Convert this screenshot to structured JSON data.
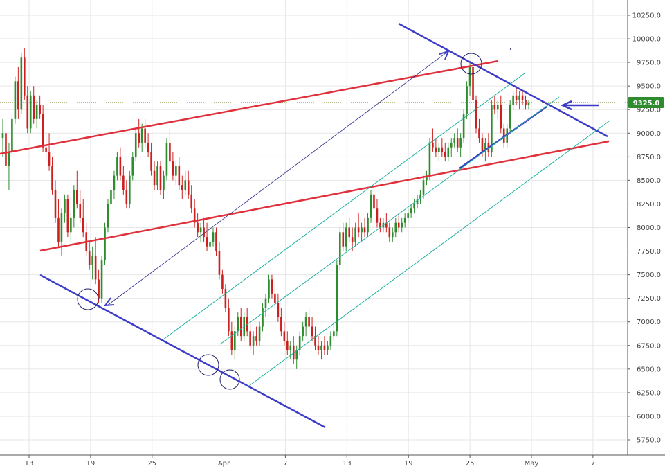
{
  "chart_data": {
    "type": "candlestick",
    "title": "",
    "xlabel": "",
    "ylabel": "",
    "ylim": [
      5600,
      10370
    ],
    "x_ticks": [
      "13",
      "19",
      "25",
      "Apr",
      "7",
      "13",
      "19",
      "25",
      "May",
      "7"
    ],
    "x_tick_dates": [
      "Mar 13",
      "Mar 19",
      "Mar 25",
      "Apr 1",
      "Apr 7",
      "Apr 13",
      "Apr 19",
      "Apr 25",
      "May 1",
      "May 7"
    ],
    "y_ticks": [
      5750,
      6000,
      6250,
      6500,
      6750,
      7000,
      7250,
      7500,
      7750,
      8000,
      8250,
      8500,
      8750,
      9000,
      9250,
      9500,
      9750,
      10000,
      10250
    ],
    "y_tick_labels": [
      "5750.0",
      "6000.0",
      "6250.0",
      "6500.0",
      "6750.0",
      "7000.0",
      "7250.0",
      "7500.0",
      "7750.0",
      "8000.0",
      "8250.0",
      "8500.0",
      "8750.0",
      "9000.0",
      "9250.0",
      "9500.0",
      "9750.0",
      "10000.0",
      "10250.0"
    ],
    "current_price": 9325,
    "current_price_label": "9325.0",
    "grid": true,
    "colors": {
      "up": "#2e8b2e",
      "down": "#cc2020",
      "trendline_red": "#e0303c",
      "trendline_blue": "#3c3cc8",
      "channel_teal": "#20b2a0",
      "price_tag": "#2e8b2e",
      "grid": "#e6e6e6"
    },
    "candles_4h": [
      [
        "Mar 11 00:00",
        8950,
        9150,
        8750,
        9000
      ],
      [
        "Mar 11 04:00",
        9000,
        9100,
        8600,
        8650
      ],
      [
        "Mar 11 08:00",
        8650,
        8900,
        8400,
        8800
      ],
      [
        "Mar 11 12:00",
        8800,
        9200,
        8750,
        9150
      ],
      [
        "Mar 11 16:00",
        9150,
        9600,
        9100,
        9550
      ],
      [
        "Mar 11 20:00",
        9550,
        9700,
        9150,
        9250
      ],
      [
        "Mar 12 00:00",
        9250,
        9850,
        9200,
        9800
      ],
      [
        "Mar 12 04:00",
        9800,
        9900,
        9350,
        9400
      ],
      [
        "Mar 12 08:00",
        9400,
        9500,
        9000,
        9050
      ],
      [
        "Mar 12 12:00",
        9050,
        9450,
        9000,
        9400
      ],
      [
        "Mar 12 16:00",
        9400,
        9500,
        9100,
        9150
      ],
      [
        "Mar 12 20:00",
        9150,
        9350,
        9050,
        9300
      ],
      [
        "Mar 13 00:00",
        9300,
        9400,
        9150,
        9200
      ],
      [
        "Mar 13 04:00",
        9200,
        9300,
        8800,
        8850
      ],
      [
        "Mar 13 08:00",
        8850,
        9000,
        8700,
        8800
      ],
      [
        "Mar 13 12:00",
        8800,
        9000,
        8600,
        8650
      ],
      [
        "Mar 13 16:00",
        8650,
        8750,
        8350,
        8400
      ],
      [
        "Mar 13 20:00",
        8400,
        8500,
        8050,
        8100
      ],
      [
        "Mar 14 00:00",
        8100,
        8300,
        7800,
        7850
      ],
      [
        "Mar 14 04:00",
        7850,
        8200,
        7700,
        8150
      ],
      [
        "Mar 14 08:00",
        8150,
        8350,
        8050,
        8300
      ],
      [
        "Mar 14 12:00",
        8300,
        8350,
        7900,
        7950
      ],
      [
        "Mar 14 16:00",
        7950,
        8150,
        7850,
        8100
      ],
      [
        "Mar 14 20:00",
        8100,
        8450,
        8000,
        8400
      ],
      [
        "Mar 15 00:00",
        8400,
        8600,
        8200,
        8250
      ],
      [
        "Mar 15 04:00",
        8250,
        8400,
        8050,
        8100
      ],
      [
        "Mar 15 08:00",
        8100,
        8300,
        7900,
        7950
      ],
      [
        "Mar 15 12:00",
        7950,
        8050,
        7700,
        7750
      ],
      [
        "Mar 15 16:00",
        7750,
        7850,
        7550,
        7600
      ],
      [
        "Mar 15 20:00",
        7600,
        7800,
        7450,
        7700
      ],
      [
        "Mar 16 00:00",
        7700,
        7900,
        7400,
        7450
      ],
      [
        "Mar 16 04:00",
        7450,
        7550,
        7200,
        7250
      ],
      [
        "Mar 16 08:00",
        7250,
        7700,
        7200,
        7650
      ],
      [
        "Mar 16 12:00",
        7650,
        8050,
        7600,
        8000
      ],
      [
        "Mar 16 16:00",
        8000,
        8300,
        7950,
        8250
      ],
      [
        "Mar 16 20:00",
        8250,
        8450,
        8150,
        8400
      ],
      [
        "Mar 17 00:00",
        8400,
        8600,
        8300,
        8550
      ],
      [
        "Mar 17 04:00",
        8550,
        8800,
        8500,
        8750
      ],
      [
        "Mar 17 08:00",
        8750,
        8850,
        8500,
        8550
      ],
      [
        "Mar 17 12:00",
        8550,
        8650,
        8350,
        8400
      ],
      [
        "Mar 17 16:00",
        8400,
        8500,
        8200,
        8250
      ],
      [
        "Mar 17 20:00",
        8250,
        8600,
        8200,
        8550
      ],
      [
        "Mar 18 00:00",
        8550,
        8800,
        8500,
        8750
      ],
      [
        "Mar 18 04:00",
        8750,
        9050,
        8700,
        9000
      ],
      [
        "Mar 18 08:00",
        9000,
        9150,
        8850,
        8900
      ],
      [
        "Mar 18 12:00",
        8900,
        9100,
        8800,
        9050
      ],
      [
        "Mar 18 16:00",
        9050,
        9150,
        8850,
        8900
      ],
      [
        "Mar 18 20:00",
        8900,
        9000,
        8750,
        8800
      ],
      [
        "Mar 19 00:00",
        8800,
        8900,
        8550,
        8600
      ],
      [
        "Mar 19 04:00",
        8600,
        8700,
        8400,
        8450
      ],
      [
        "Mar 19 08:00",
        8450,
        8700,
        8400,
        8650
      ],
      [
        "Mar 19 12:00",
        8650,
        8700,
        8350,
        8400
      ],
      [
        "Mar 19 16:00",
        8400,
        8600,
        8300,
        8550
      ],
      [
        "Mar 19 20:00",
        8550,
        8950,
        8500,
        8900
      ],
      [
        "Mar 20 00:00",
        8900,
        9050,
        8650,
        8700
      ],
      [
        "Mar 20 04:00",
        8700,
        8800,
        8500,
        8550
      ],
      [
        "Mar 20 08:00",
        8550,
        8700,
        8450,
        8650
      ],
      [
        "Mar 20 12:00",
        8650,
        8750,
        8400,
        8450
      ],
      [
        "Mar 20 16:00",
        8450,
        8550,
        8300,
        8400
      ],
      [
        "Mar 20 20:00",
        8400,
        8600,
        8350,
        8500
      ],
      [
        "Mar 21 00:00",
        8500,
        8600,
        8300,
        8350
      ],
      [
        "Mar 21 04:00",
        8350,
        8450,
        8150,
        8200
      ],
      [
        "Mar 21 08:00",
        8200,
        8300,
        8000,
        8050
      ],
      [
        "Mar 21 12:00",
        8050,
        8150,
        7900,
        7950
      ],
      [
        "Mar 21 16:00",
        7950,
        8050,
        7850,
        8000
      ],
      [
        "Mar 21 20:00",
        8000,
        8100,
        7850,
        7900
      ],
      [
        "Mar 22 00:00",
        7900,
        8050,
        7750,
        7800
      ],
      [
        "Mar 22 04:00",
        7800,
        7950,
        7700,
        7850
      ],
      [
        "Mar 22 08:00",
        7850,
        8000,
        7800,
        7950
      ],
      [
        "Mar 22 12:00",
        7950,
        8000,
        7700,
        7750
      ],
      [
        "Mar 22 16:00",
        7750,
        7850,
        7450,
        7500
      ],
      [
        "Mar 22 20:00",
        7500,
        7550,
        7300,
        7350
      ],
      [
        "Mar 23 00:00",
        7350,
        7400,
        7100,
        7150
      ],
      [
        "Mar 23 04:00",
        7150,
        7250,
        6850,
        6900
      ],
      [
        "Mar 23 08:00",
        6900,
        7000,
        6650,
        6700
      ],
      [
        "Mar 23 12:00",
        6700,
        6950,
        6600,
        6900
      ],
      [
        "Mar 23 16:00",
        6900,
        7100,
        6850,
        7050
      ],
      [
        "Mar 23 20:00",
        7050,
        7150,
        6800,
        6850
      ],
      [
        "Mar 24 00:00",
        6850,
        7100,
        6800,
        7050
      ],
      [
        "Mar 24 04:00",
        7050,
        7150,
        6850,
        6900
      ],
      [
        "Mar 24 08:00",
        6900,
        7000,
        6700,
        6750
      ],
      [
        "Mar 24 12:00",
        6750,
        6900,
        6650,
        6850
      ],
      [
        "Mar 24 16:00",
        6850,
        6950,
        6750,
        6800
      ],
      [
        "Mar 24 20:00",
        6800,
        7000,
        6750,
        6950
      ],
      [
        "Mar 25 00:00",
        6950,
        7200,
        6900,
        7150
      ],
      [
        "Mar 25 04:00",
        7150,
        7300,
        7050,
        7250
      ],
      [
        "Mar 25 08:00",
        7250,
        7500,
        7200,
        7450
      ],
      [
        "Mar 25 12:00",
        7450,
        7500,
        7250,
        7300
      ],
      [
        "Mar 25 16:00",
        7300,
        7400,
        7150,
        7200
      ],
      [
        "Mar 25 20:00",
        7200,
        7300,
        7000,
        7050
      ],
      [
        "Mar 26 00:00",
        7050,
        7150,
        6850,
        6900
      ],
      [
        "Mar 26 04:00",
        6900,
        7000,
        6750,
        6800
      ],
      [
        "Mar 26 08:00",
        6800,
        6900,
        6650,
        6700
      ],
      [
        "Mar 26 12:00",
        6700,
        6800,
        6600,
        6750
      ],
      [
        "Mar 26 16:00",
        6750,
        6850,
        6550,
        6600
      ],
      [
        "Mar 26 20:00",
        6600,
        6750,
        6500,
        6700
      ],
      [
        "Mar 27 00:00",
        6700,
        6900,
        6650,
        6850
      ],
      [
        "Mar 27 04:00",
        6850,
        7000,
        6800,
        6950
      ],
      [
        "Mar 27 08:00",
        6950,
        7100,
        6850,
        7050
      ],
      [
        "Mar 27 12:00",
        7050,
        7150,
        6900,
        6950
      ],
      [
        "Mar 27 16:00",
        6950,
        7050,
        6800,
        6850
      ],
      [
        "Mar 27 20:00",
        6850,
        6950,
        6700,
        6750
      ],
      [
        "Mar 28 00:00",
        6750,
        6850,
        6650,
        6700
      ],
      [
        "Mar 28 04:00",
        6700,
        6800,
        6600,
        6750
      ],
      [
        "Mar 28 08:00",
        6750,
        6850,
        6650,
        6700
      ],
      [
        "Mar 28 12:00",
        6700,
        6800,
        6650,
        6750
      ],
      [
        "Mar 28 16:00",
        6750,
        6900,
        6700,
        6850
      ],
      [
        "Mar 28 20:00",
        6850,
        7000,
        6800,
        6900
      ],
      [
        "Mar 29 00:00",
        6900,
        7650,
        6850,
        7600
      ],
      [
        "Mar 29 04:00",
        7600,
        8000,
        7550,
        7950
      ],
      [
        "Mar 29 08:00",
        7950,
        8050,
        7750,
        7800
      ],
      [
        "Mar 29 12:00",
        7800,
        8050,
        7750,
        8000
      ],
      [
        "Mar 29 16:00",
        8000,
        8100,
        7850,
        7900
      ],
      [
        "Mar 29 20:00",
        7900,
        8000,
        7750,
        7850
      ],
      [
        "Mar 30 00:00",
        7850,
        8050,
        7800,
        8000
      ],
      [
        "Mar 30 04:00",
        8000,
        8150,
        7900,
        7950
      ],
      [
        "Mar 30 08:00",
        7950,
        8050,
        7850,
        8000
      ],
      [
        "Mar 30 12:00",
        8000,
        8100,
        7900,
        7950
      ],
      [
        "Mar 30 16:00",
        7950,
        8150,
        7900,
        8100
      ],
      [
        "Mar 30 20:00",
        8100,
        8400,
        8050,
        8350
      ],
      [
        "Mar 31 00:00",
        8350,
        8450,
        8150,
        8200
      ],
      [
        "Mar 31 04:00",
        8200,
        8300,
        8000,
        8050
      ],
      [
        "Mar 31 08:00",
        8050,
        8100,
        7950,
        8000
      ],
      [
        "Mar 31 12:00",
        8000,
        8100,
        7950,
        8050
      ],
      [
        "Mar 31 16:00",
        8050,
        8150,
        7950,
        8000
      ],
      [
        "Mar 31 20:00",
        8000,
        8050,
        7850,
        7900
      ],
      [
        "Apr 1 00:00",
        7900,
        8000,
        7850,
        7950
      ],
      [
        "Apr 1 04:00",
        7950,
        8100,
        7900,
        8050
      ],
      [
        "Apr 1 08:00",
        8050,
        8150,
        7950,
        8000
      ],
      [
        "Apr 1 12:00",
        8000,
        8100,
        7950,
        8050
      ],
      [
        "Apr 1 16:00",
        8050,
        8150,
        8000,
        8100
      ],
      [
        "Apr 1 20:00",
        8100,
        8200,
        8050,
        8150
      ],
      [
        "Apr 2 00:00",
        8150,
        8250,
        8100,
        8200
      ],
      [
        "Apr 2 04:00",
        8200,
        8300,
        8150,
        8250
      ],
      [
        "Apr 2 08:00",
        8250,
        8350,
        8200,
        8300
      ],
      [
        "Apr 2 12:00",
        8300,
        8400,
        8250,
        8350
      ],
      [
        "Apr 2 16:00",
        8350,
        8550,
        8300,
        8500
      ],
      [
        "Apr 2 20:00",
        8500,
        8600,
        8450,
        8550
      ],
      [
        "Apr 3 00:00",
        8550,
        8950,
        8500,
        8900
      ],
      [
        "Apr 3 04:00",
        8900,
        9050,
        8800,
        8850
      ],
      [
        "Apr 3 08:00",
        8850,
        8950,
        8750,
        8800
      ],
      [
        "Apr 3 12:00",
        8800,
        8900,
        8700,
        8850
      ],
      [
        "Apr 3 16:00",
        8850,
        8950,
        8750,
        8800
      ],
      [
        "Apr 3 20:00",
        8800,
        8900,
        8700,
        8750
      ],
      [
        "Apr 4 00:00",
        8750,
        8900,
        8700,
        8850
      ],
      [
        "Apr 4 04:00",
        8850,
        8950,
        8750,
        8900
      ],
      [
        "Apr 4 08:00",
        8900,
        9000,
        8850,
        8950
      ],
      [
        "Apr 4 12:00",
        8950,
        9050,
        8800,
        8850
      ],
      [
        "Apr 4 16:00",
        8850,
        9000,
        8750,
        8950
      ],
      [
        "Apr 4 20:00",
        8950,
        9250,
        8900,
        9200
      ],
      [
        "Apr 5 00:00",
        9200,
        9550,
        9150,
        9500
      ],
      [
        "Apr 5 04:00",
        9500,
        9750,
        9400,
        9700
      ],
      [
        "Apr 5 08:00",
        9700,
        9750,
        9300,
        9350
      ],
      [
        "Apr 5 12:00",
        9350,
        9400,
        9000,
        9050
      ],
      [
        "Apr 5 16:00",
        9050,
        9150,
        8900,
        8950
      ],
      [
        "Apr 5 20:00",
        8950,
        9000,
        8750,
        8800
      ],
      [
        "Apr 6 00:00",
        8800,
        8950,
        8700,
        8900
      ],
      [
        "Apr 6 04:00",
        8900,
        9000,
        8750,
        8800
      ],
      [
        "Apr 6 08:00",
        8800,
        9350,
        8750,
        9300
      ],
      [
        "Apr 6 12:00",
        9300,
        9400,
        9200,
        9250
      ],
      [
        "Apr 6 16:00",
        9250,
        9350,
        9150,
        9300
      ],
      [
        "Apr 6 20:00",
        9300,
        9400,
        9000,
        9050
      ],
      [
        "Apr 7 00:00",
        9050,
        9100,
        8850,
        8900
      ],
      [
        "Apr 7 04:00",
        8900,
        9100,
        8850,
        9050
      ],
      [
        "Apr 7 08:00",
        9050,
        9350,
        9000,
        9300
      ],
      [
        "Apr 7 12:00",
        9300,
        9450,
        9250,
        9400
      ],
      [
        "Apr 7 16:00",
        9400,
        9500,
        9300,
        9350
      ],
      [
        "Apr 7 20:00",
        9350,
        9450,
        9250,
        9400
      ],
      [
        "Apr 8 00:00",
        9400,
        9450,
        9300,
        9350
      ],
      [
        "Apr 8 04:00",
        9350,
        9400,
        9250,
        9300
      ],
      [
        "Apr 8 08:00",
        9300,
        9350,
        9250,
        9325
      ]
    ]
  }
}
